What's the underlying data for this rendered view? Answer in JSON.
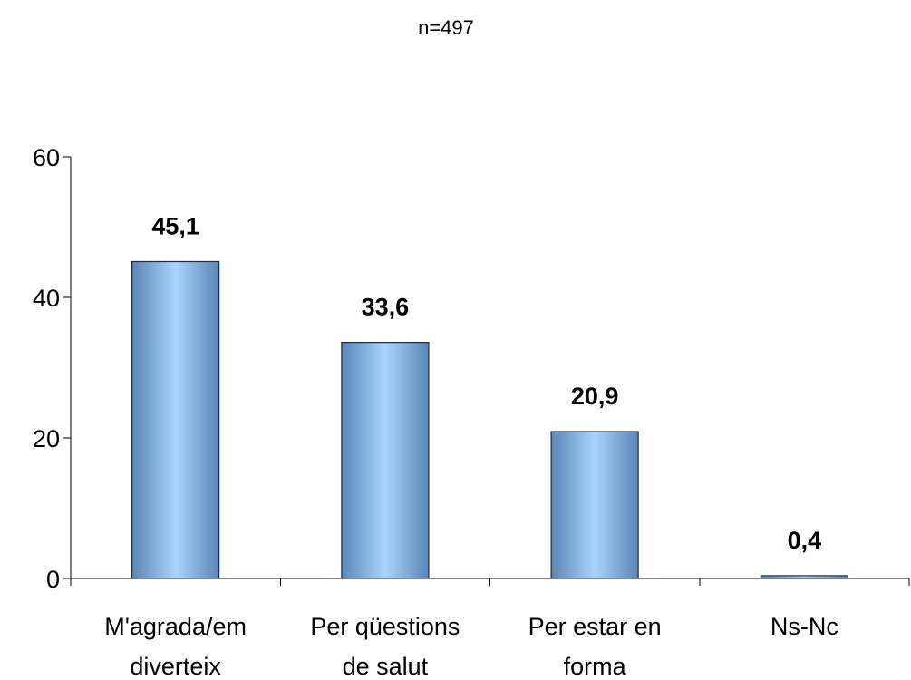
{
  "subtitle": "n=497",
  "chart_data": {
    "type": "bar",
    "title": "",
    "subtitle": "n=497",
    "categories": [
      [
        "M'agrada/em",
        "diverteix"
      ],
      [
        "Per qüestions",
        "de salut"
      ],
      [
        "Per estar en",
        "forma"
      ],
      [
        "Ns-Nc"
      ]
    ],
    "values": [
      45.1,
      33.6,
      20.9,
      0.4
    ],
    "data_labels": [
      "45,1",
      "33,6",
      "20,9",
      "0,4"
    ],
    "yticks": [
      0,
      20,
      40,
      60
    ],
    "ylim": [
      0,
      60
    ],
    "xlabel": "",
    "ylabel": "",
    "grid": false,
    "legend": "none",
    "colors": {
      "bar_light": "#a9d4ff",
      "bar_dark": "#5b86b5",
      "bar_edge": "#1f2a44"
    }
  }
}
